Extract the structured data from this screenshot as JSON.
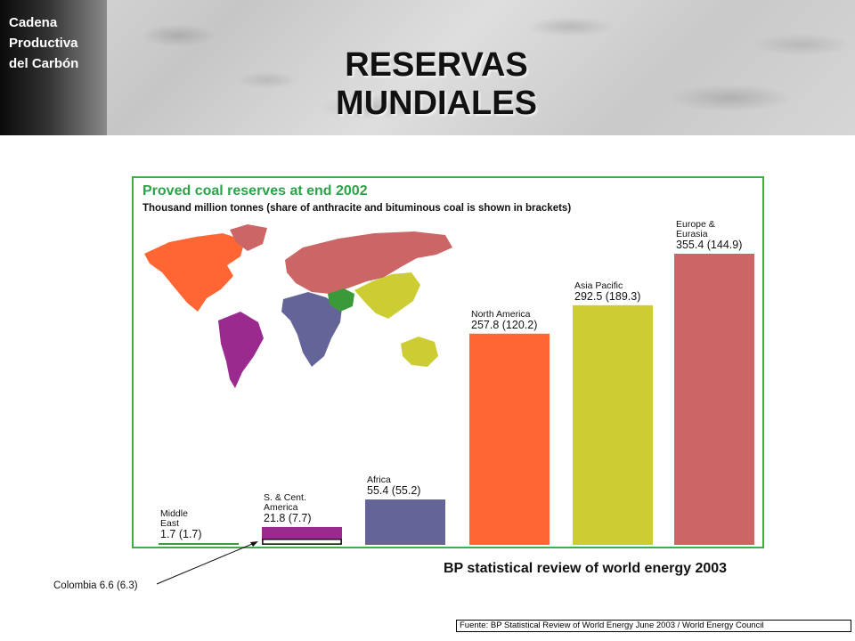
{
  "header": {
    "side_tab": [
      "Cadena",
      "Productiva",
      "del Carbón"
    ],
    "title": "RESERVAS MUNDIALES"
  },
  "chart_data": {
    "type": "bar",
    "title": "Proved coal reserves at end 2002",
    "subtitle": "Thousand million tonnes (share of anthracite and bituminous coal is shown in brackets)",
    "categories": [
      "Middle East",
      "S. & Cent. America",
      "Africa",
      "North America",
      "Asia Pacific",
      "Europe & Eurasia"
    ],
    "label_lines": [
      [
        "Middle",
        "East"
      ],
      [
        "S. & Cent.",
        "America"
      ],
      [
        "Africa"
      ],
      [
        "North America"
      ],
      [
        "Asia Pacific"
      ],
      [
        "Europe &",
        "Eurasia"
      ]
    ],
    "values": [
      1.7,
      21.8,
      55.4,
      257.8,
      292.5,
      355.4
    ],
    "bracket_values": [
      1.7,
      7.7,
      55.2,
      120.2,
      189.3,
      144.9
    ],
    "value_labels": [
      "1.7 (1.7)",
      "21.8 (7.7)",
      "55.4 (55.2)",
      "257.8 (120.2)",
      "292.5 (189.3)",
      "355.4 (144.9)"
    ],
    "colors": [
      "#3a9a3a",
      "#9b2a8e",
      "#646499",
      "#ff6633",
      "#cccc33",
      "#cc6666"
    ],
    "ylim": [
      0,
      355.4
    ],
    "annotation": {
      "category": "S. & Cent. America",
      "label": "Colombia 6.6 (6.3)",
      "value": 6.6
    }
  },
  "bp_caption": "BP statistical review of world energy 2003",
  "source": "Fuente: BP Statistical Review of World Energy June 2003 / World Energy Council"
}
